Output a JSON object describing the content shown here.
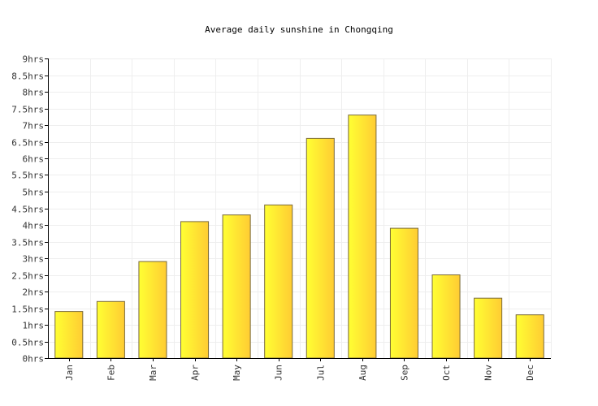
{
  "chart_data": {
    "type": "bar",
    "title": "Average daily sunshine in Chongqing",
    "xlabel": "",
    "ylabel": "",
    "categories": [
      "Jan",
      "Feb",
      "Mar",
      "Apr",
      "May",
      "Jun",
      "Jul",
      "Aug",
      "Sep",
      "Oct",
      "Nov",
      "Dec"
    ],
    "values": [
      1.4,
      1.7,
      2.9,
      4.1,
      4.3,
      4.6,
      6.6,
      7.3,
      3.9,
      2.5,
      1.8,
      1.3
    ],
    "ylim": [
      0,
      9
    ],
    "yticks": [
      "0hrs",
      "0.5hrs",
      "1hrs",
      "1.5hrs",
      "2hrs",
      "2.5hrs",
      "3hrs",
      "3.5hrs",
      "4hrs",
      "4.5hrs",
      "5hrs",
      "5.5hrs",
      "6hrs",
      "6.5hrs",
      "7hrs",
      "7.5hrs",
      "8hrs",
      "8.5hrs",
      "9hrs"
    ],
    "ytick_values": [
      0,
      0.5,
      1,
      1.5,
      2,
      2.5,
      3,
      3.5,
      4,
      4.5,
      5,
      5.5,
      6,
      6.5,
      7,
      7.5,
      8,
      8.5,
      9
    ],
    "grid": true,
    "legend": "none",
    "colors": {
      "bar_left": "#ffff33",
      "bar_right": "#ffcc33",
      "bar_stroke": "#7a6a3a",
      "grid": "#eeeeee",
      "axis": "#000000"
    }
  }
}
